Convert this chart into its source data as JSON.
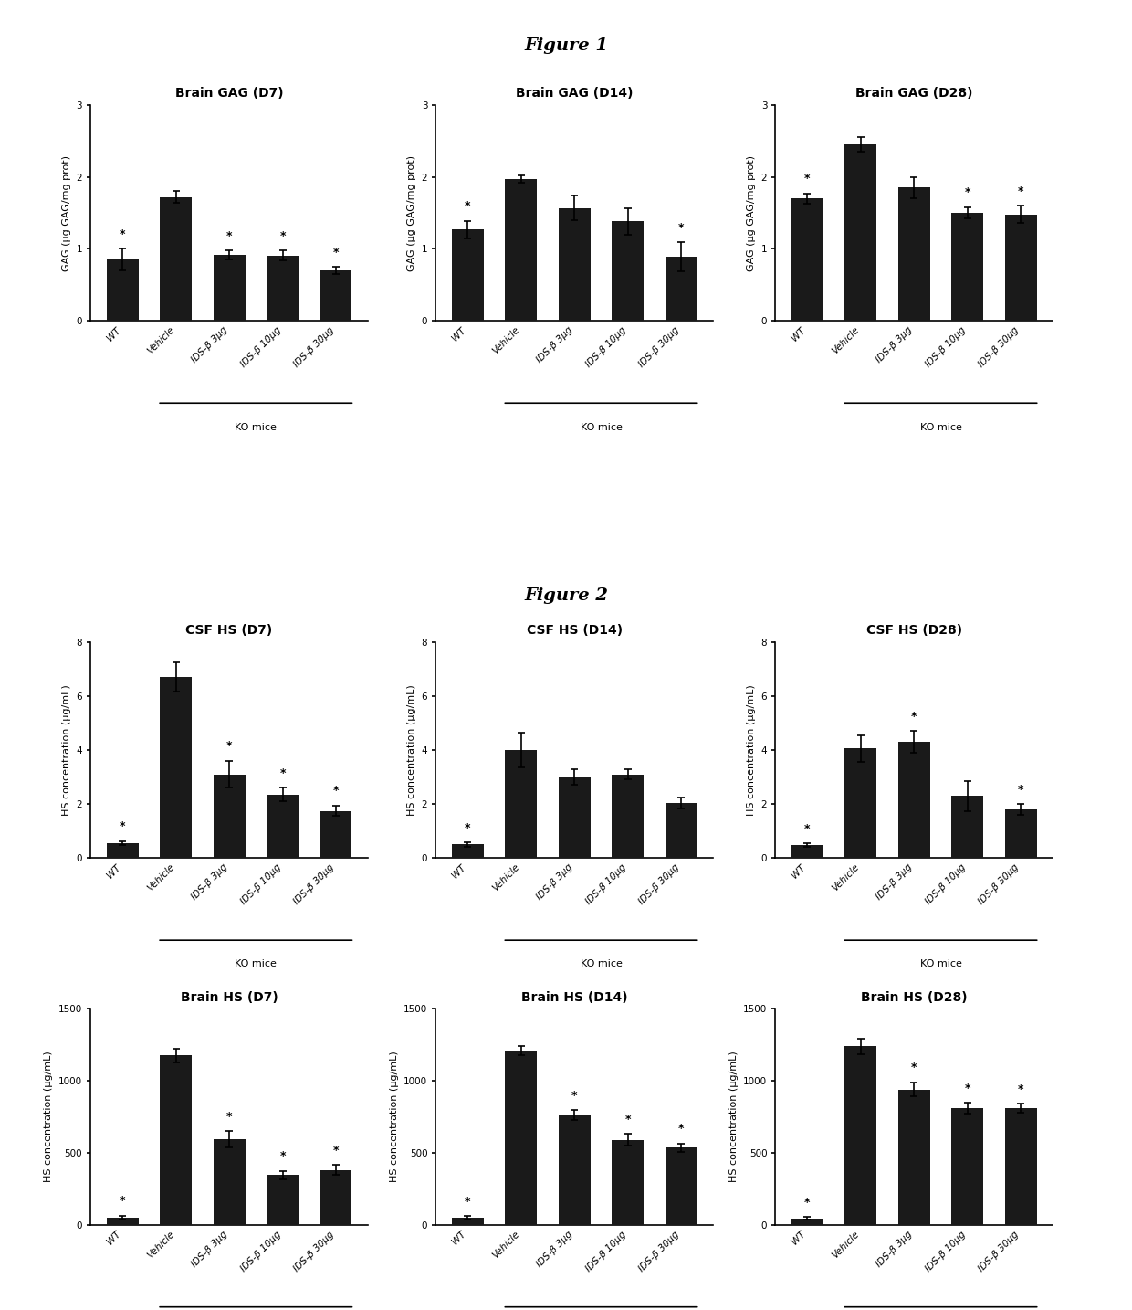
{
  "fig1_title": "Figure 1",
  "fig2_title": "Figure 2",
  "categories": [
    "WT",
    "Vehicle",
    "IDS-β 3μg",
    "IDS-β 10μg",
    "IDS-β 30μg"
  ],
  "ko_label": "KO mice",
  "star_indices": {
    "brain_gag_d7": [
      0,
      2,
      3,
      4
    ],
    "brain_gag_d14": [
      0,
      4
    ],
    "brain_gag_d28": [
      0,
      3,
      4
    ],
    "csf_hs_d7": [
      0,
      2,
      3,
      4
    ],
    "csf_hs_d14": [
      0
    ],
    "csf_hs_d28": [
      0,
      2,
      4
    ],
    "brain_hs_d7": [
      0,
      2,
      3,
      4
    ],
    "brain_hs_d14": [
      0,
      2,
      3,
      4
    ],
    "brain_hs_d28": [
      0,
      2,
      3,
      4
    ]
  },
  "brain_gag_d7": {
    "values": [
      0.85,
      1.72,
      0.92,
      0.91,
      0.7
    ],
    "errors": [
      0.15,
      0.08,
      0.06,
      0.07,
      0.05
    ],
    "ylim": [
      0,
      3
    ],
    "yticks": [
      0,
      1,
      2,
      3
    ],
    "ylabel": "GAG (μg GAG/mg prot)"
  },
  "brain_gag_d14": {
    "values": [
      1.27,
      1.97,
      1.57,
      1.38,
      0.89
    ],
    "errors": [
      0.12,
      0.05,
      0.17,
      0.19,
      0.2
    ],
    "ylim": [
      0,
      3
    ],
    "yticks": [
      0,
      1,
      2,
      3
    ],
    "ylabel": "GAG (μg GAG/mg prot)"
  },
  "brain_gag_d28": {
    "values": [
      1.7,
      2.45,
      1.85,
      1.5,
      1.48
    ],
    "errors": [
      0.07,
      0.1,
      0.15,
      0.08,
      0.12
    ],
    "ylim": [
      0,
      3
    ],
    "yticks": [
      0,
      1,
      2,
      3
    ],
    "ylabel": "GAG (μg GAG/mg prot)"
  },
  "csf_hs_d7": {
    "values": [
      0.55,
      6.7,
      3.1,
      2.35,
      1.75
    ],
    "errors": [
      0.08,
      0.55,
      0.5,
      0.25,
      0.2
    ],
    "ylim": [
      0,
      8
    ],
    "yticks": [
      0,
      2,
      4,
      6,
      8
    ],
    "ylabel": "HS concentration (μg/mL)"
  },
  "csf_hs_d14": {
    "values": [
      0.5,
      4.0,
      3.0,
      3.1,
      2.05
    ],
    "errors": [
      0.07,
      0.65,
      0.3,
      0.18,
      0.2
    ],
    "ylim": [
      0,
      8
    ],
    "yticks": [
      0,
      2,
      4,
      6,
      8
    ],
    "ylabel": "HS concentration (μg/mL)"
  },
  "csf_hs_d28": {
    "values": [
      0.48,
      4.05,
      4.3,
      2.3,
      1.8
    ],
    "errors": [
      0.06,
      0.5,
      0.4,
      0.55,
      0.2
    ],
    "ylim": [
      0,
      8
    ],
    "yticks": [
      0,
      2,
      4,
      6,
      8
    ],
    "ylabel": "HS concentration (μg/mL)"
  },
  "brain_hs_d7": {
    "values": [
      50,
      1175,
      595,
      345,
      380
    ],
    "errors": [
      15,
      45,
      55,
      30,
      35
    ],
    "ylim": [
      0,
      1500
    ],
    "yticks": [
      0,
      500,
      1000,
      1500
    ],
    "ylabel": "HS concentration (μg/mL)"
  },
  "brain_hs_d14": {
    "values": [
      50,
      1210,
      760,
      590,
      535
    ],
    "errors": [
      12,
      30,
      35,
      40,
      30
    ],
    "ylim": [
      0,
      1500
    ],
    "yticks": [
      0,
      500,
      1000,
      1500
    ],
    "ylabel": "HS concentration (μg/mL)"
  },
  "brain_hs_d28": {
    "values": [
      45,
      1240,
      940,
      810,
      810
    ],
    "errors": [
      10,
      55,
      50,
      35,
      30
    ],
    "ylim": [
      0,
      1500
    ],
    "yticks": [
      0,
      500,
      1000,
      1500
    ],
    "ylabel": "HS concentration (μg/mL)"
  },
  "bar_color": "#1a1a1a",
  "bg_color": "#ffffff",
  "subplot_titles": {
    "brain_gag_d7": "Brain GAG (D7)",
    "brain_gag_d14": "Brain GAG (D14)",
    "brain_gag_d28": "Brain GAG (D28)",
    "csf_hs_d7": "CSF HS (D7)",
    "csf_hs_d14": "CSF HS (D14)",
    "csf_hs_d28": "CSF HS (D28)",
    "brain_hs_d7": "Brain HS (D7)",
    "brain_hs_d14": "Brain HS (D14)",
    "brain_hs_d28": "Brain HS (D28)"
  }
}
